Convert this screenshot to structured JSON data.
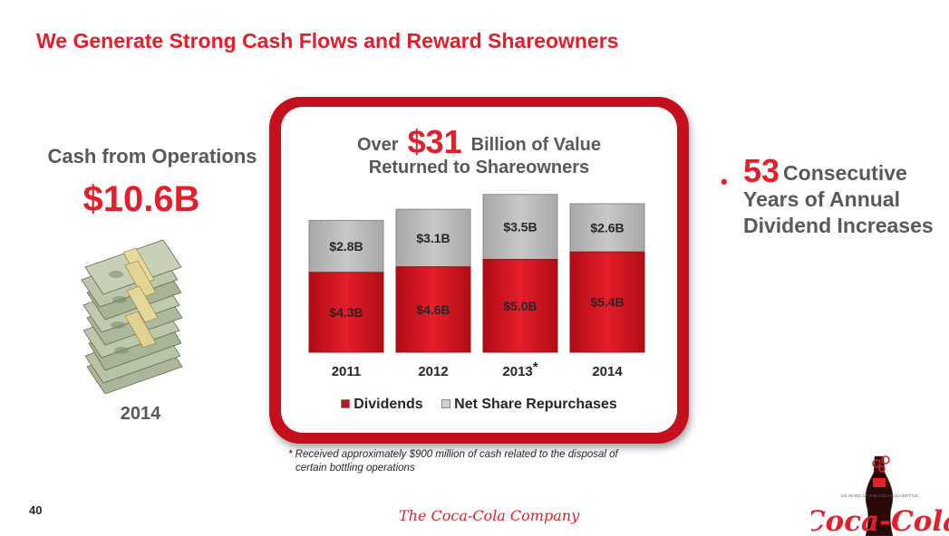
{
  "slide": {
    "title": "We Generate Strong Cash Flows and Reward Shareowners",
    "page_number": "40",
    "company_logo": "The Coca-Cola Company"
  },
  "cash_from_operations": {
    "label": "Cash from Operations",
    "value": "$10.6B",
    "year": "2014",
    "image_icon": "money-stack-icon"
  },
  "chart_header": {
    "prefix": "Over",
    "amount": "$31",
    "suffix": "Billion of Value",
    "line2": "Returned to Shareowners"
  },
  "dividend_increases": {
    "number": "53",
    "text_line1": "Consecutive",
    "text_line2": "Years of Annual",
    "text_line3": "Dividend Increases"
  },
  "footnote": {
    "line1": "* Received approximately $900 million of cash related to the disposal of",
    "line2": "certain bottling operations"
  },
  "branding": {
    "bottle_badge": "100 YEARS OF THE COCA-COLA BOTTLE",
    "wordmark": "Coca-Cola"
  },
  "chart_data": {
    "type": "bar",
    "stacked": true,
    "categories": [
      "2011",
      "2012",
      "2013",
      "2014"
    ],
    "category_marks": [
      "",
      "",
      "*",
      ""
    ],
    "series": [
      {
        "name": "Dividends",
        "values": [
          4.3,
          4.6,
          5.0,
          5.4
        ],
        "labels": [
          "$4.3B",
          "$4.6B",
          "$5.0B",
          "$5.4B"
        ],
        "color": "#e41e2b"
      },
      {
        "name": "Net Share Repurchases",
        "values": [
          2.8,
          3.1,
          3.5,
          2.6
        ],
        "labels": [
          "$2.8B",
          "$3.1B",
          "$3.5B",
          "$2.6B"
        ],
        "color": "#c8c8c8"
      }
    ],
    "value_unit": "$B",
    "legend_position": "bottom",
    "grid": false
  },
  "colors": {
    "accent_red": "#e41e2b",
    "frame_red": "#c4101c",
    "gray_text": "#595959"
  }
}
